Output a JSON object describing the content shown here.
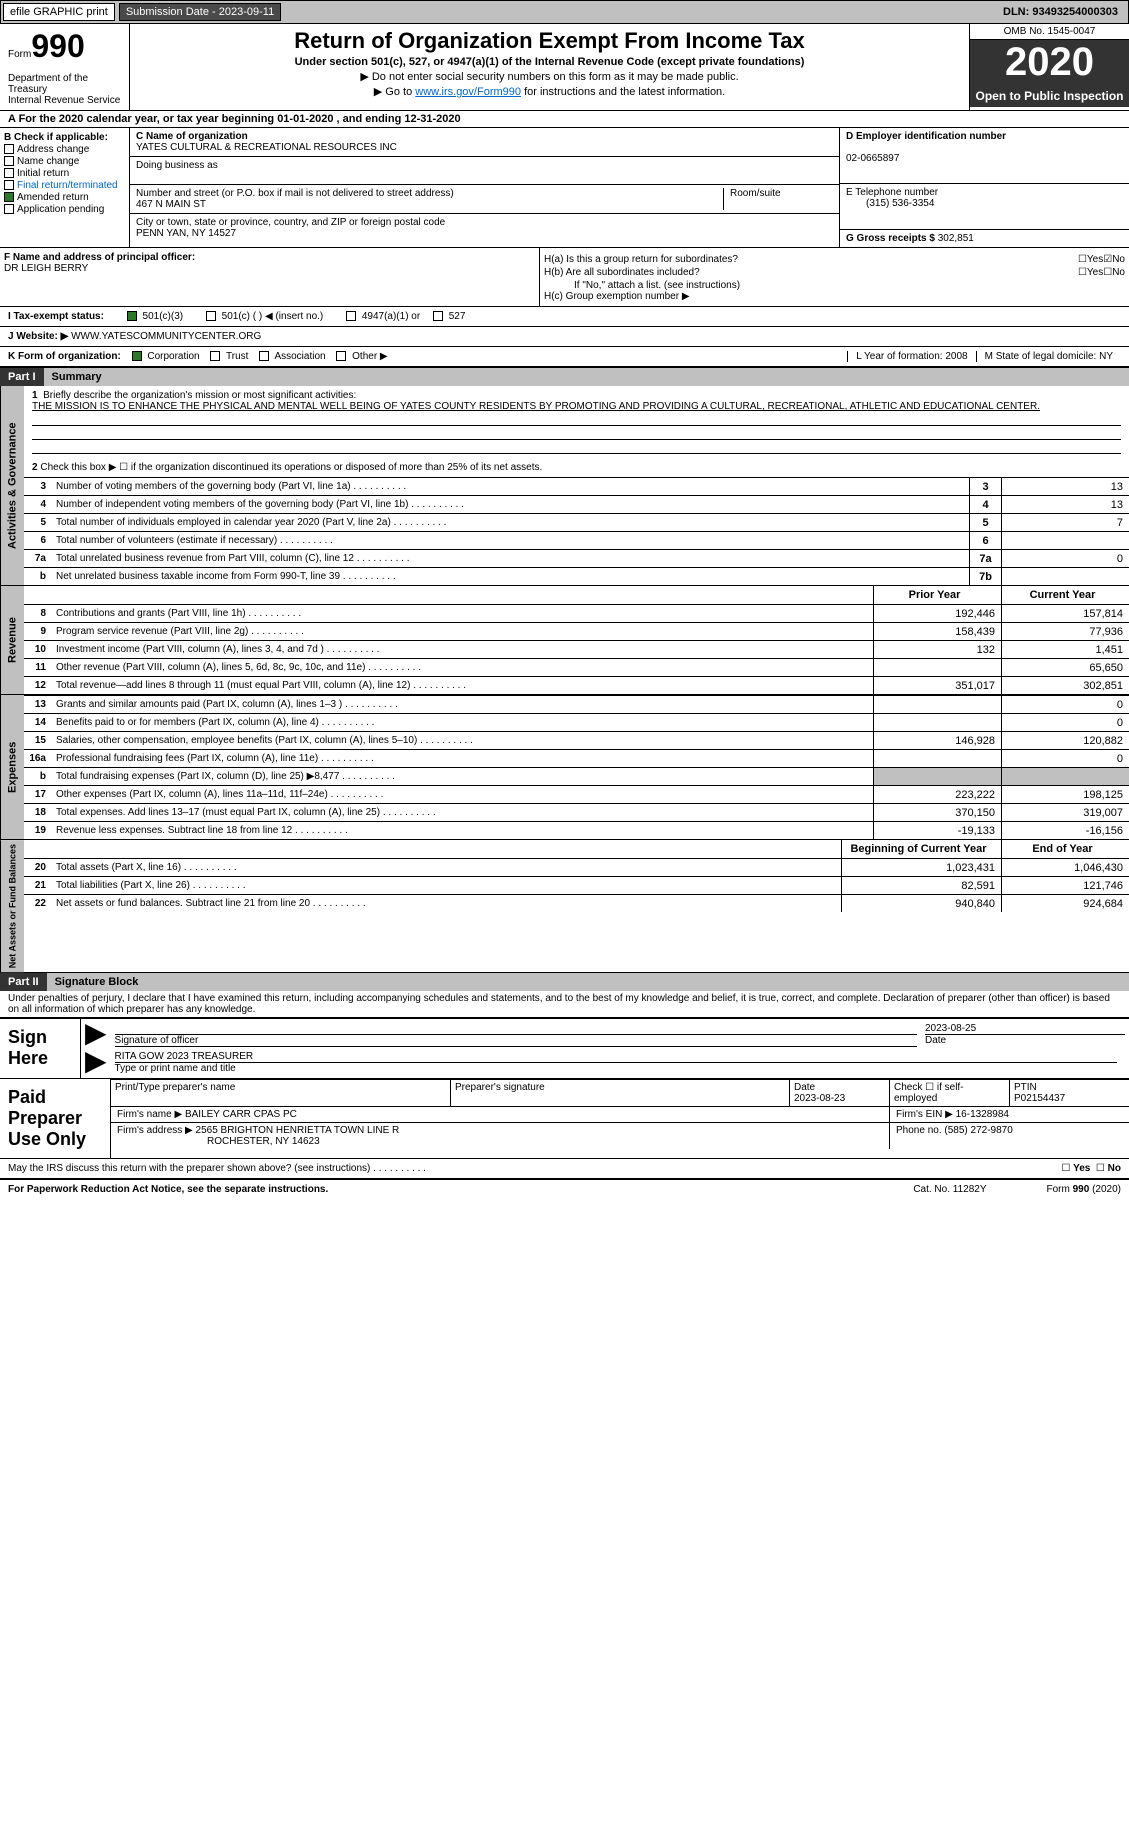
{
  "topbar": {
    "efile": "efile GRAPHIC print",
    "sub_label": "Submission Date - 2023-09-11",
    "dln": "DLN: 93493254000303"
  },
  "header": {
    "form_label": "Form",
    "form_num": "990",
    "dept": "Department of the Treasury\nInternal Revenue Service",
    "title": "Return of Organization Exempt From Income Tax",
    "subtitle": "Under section 501(c), 527, or 4947(a)(1) of the Internal Revenue Code (except private foundations)",
    "line1": "▶ Do not enter social security numbers on this form as it may be made public.",
    "line2_pre": "▶ Go to ",
    "line2_link": "www.irs.gov/Form990",
    "line2_post": " for instructions and the latest information.",
    "omb": "OMB No. 1545-0047",
    "year": "2020",
    "inspect": "Open to Public Inspection"
  },
  "line_a": "A For the 2020 calendar year, or tax year beginning 01-01-2020   , and ending 12-31-2020",
  "box_b": {
    "title": "B Check if applicable:",
    "items": [
      "Address change",
      "Name change",
      "Initial return",
      "Final return/terminated",
      "Amended return",
      "Application pending"
    ],
    "checked": [
      false,
      false,
      false,
      false,
      true,
      false
    ]
  },
  "box_c": {
    "name_label": "C Name of organization",
    "name": "YATES CULTURAL & RECREATIONAL RESOURCES INC",
    "dba_label": "Doing business as",
    "addr_label": "Number and street (or P.O. box if mail is not delivered to street address)",
    "addr": "467 N MAIN ST",
    "room_label": "Room/suite",
    "city_label": "City or town, state or province, country, and ZIP or foreign postal code",
    "city": "PENN YAN, NY  14527"
  },
  "box_d": {
    "ein_label": "D Employer identification number",
    "ein": "02-0665897",
    "tel_label": "E Telephone number",
    "tel": "(315) 536-3354",
    "gross_label": "G Gross receipts $ ",
    "gross": "302,851"
  },
  "box_f": {
    "label": "F  Name and address of principal officer:",
    "name": "DR LEIGH BERRY"
  },
  "box_h": {
    "ha": "H(a)  Is this a group return for subordinates?",
    "hb": "H(b)  Are all subordinates included?",
    "hb_note": "If \"No,\" attach a list. (see instructions)",
    "hc": "H(c)  Group exemption number ▶"
  },
  "tax_status": {
    "label": "I   Tax-exempt status:",
    "opts": [
      "501(c)(3)",
      "501(c) (  ) ◀ (insert no.)",
      "4947(a)(1) or",
      "527"
    ]
  },
  "website": {
    "label": "J   Website: ▶ ",
    "val": "WWW.YATESCOMMUNITYCENTER.ORG"
  },
  "box_k": {
    "label": "K Form of organization:",
    "opts": [
      "Corporation",
      "Trust",
      "Association",
      "Other ▶"
    ]
  },
  "box_l": "L Year of formation: 2008",
  "box_m": "M State of legal domicile: NY",
  "part1": {
    "header": "Part I",
    "title": "Summary",
    "q1_label": "1",
    "q1": "Briefly describe the organization's mission or most significant activities:",
    "mission": "THE MISSION IS TO ENHANCE THE PHYSICAL AND MENTAL WELL BEING OF YATES COUNTY RESIDENTS BY PROMOTING AND PROVIDING A CULTURAL, RECREATIONAL, ATHLETIC AND EDUCATIONAL CENTER.",
    "q2": "Check this box ▶ ☐ if the organization discontinued its operations or disposed of more than 25% of its net assets."
  },
  "sections": {
    "governance": "Activities & Governance",
    "revenue": "Revenue",
    "expenses": "Expenses",
    "net": "Net Assets or Fund Balances"
  },
  "gov_rows": [
    {
      "n": "3",
      "t": "Number of voting members of the governing body (Part VI, line 1a)",
      "box": "3",
      "v": "13"
    },
    {
      "n": "4",
      "t": "Number of independent voting members of the governing body (Part VI, line 1b)",
      "box": "4",
      "v": "13"
    },
    {
      "n": "5",
      "t": "Total number of individuals employed in calendar year 2020 (Part V, line 2a)",
      "box": "5",
      "v": "7"
    },
    {
      "n": "6",
      "t": "Total number of volunteers (estimate if necessary)",
      "box": "6",
      "v": ""
    },
    {
      "n": "7a",
      "t": "Total unrelated business revenue from Part VIII, column (C), line 12",
      "box": "7a",
      "v": "0"
    },
    {
      "n": "b",
      "t": "Net unrelated business taxable income from Form 990-T, line 39",
      "box": "7b",
      "v": ""
    }
  ],
  "col_headers": {
    "prior": "Prior Year",
    "current": "Current Year",
    "boy": "Beginning of Current Year",
    "eoy": "End of Year"
  },
  "rev_rows": [
    {
      "n": "8",
      "t": "Contributions and grants (Part VIII, line 1h)",
      "p": "192,446",
      "c": "157,814"
    },
    {
      "n": "9",
      "t": "Program service revenue (Part VIII, line 2g)",
      "p": "158,439",
      "c": "77,936"
    },
    {
      "n": "10",
      "t": "Investment income (Part VIII, column (A), lines 3, 4, and 7d )",
      "p": "132",
      "c": "1,451"
    },
    {
      "n": "11",
      "t": "Other revenue (Part VIII, column (A), lines 5, 6d, 8c, 9c, 10c, and 11e)",
      "p": "",
      "c": "65,650"
    },
    {
      "n": "12",
      "t": "Total revenue—add lines 8 through 11 (must equal Part VIII, column (A), line 12)",
      "p": "351,017",
      "c": "302,851"
    }
  ],
  "exp_rows": [
    {
      "n": "13",
      "t": "Grants and similar amounts paid (Part IX, column (A), lines 1–3 )",
      "p": "",
      "c": "0"
    },
    {
      "n": "14",
      "t": "Benefits paid to or for members (Part IX, column (A), line 4)",
      "p": "",
      "c": "0"
    },
    {
      "n": "15",
      "t": "Salaries, other compensation, employee benefits (Part IX, column (A), lines 5–10)",
      "p": "146,928",
      "c": "120,882"
    },
    {
      "n": "16a",
      "t": "Professional fundraising fees (Part IX, column (A), line 11e)",
      "p": "",
      "c": "0"
    },
    {
      "n": "b",
      "t": "Total fundraising expenses (Part IX, column (D), line 25) ▶8,477",
      "p": "shaded",
      "c": "shaded"
    },
    {
      "n": "17",
      "t": "Other expenses (Part IX, column (A), lines 11a–11d, 11f–24e)",
      "p": "223,222",
      "c": "198,125"
    },
    {
      "n": "18",
      "t": "Total expenses. Add lines 13–17 (must equal Part IX, column (A), line 25)",
      "p": "370,150",
      "c": "319,007"
    },
    {
      "n": "19",
      "t": "Revenue less expenses. Subtract line 18 from line 12",
      "p": "-19,133",
      "c": "-16,156"
    }
  ],
  "net_rows": [
    {
      "n": "20",
      "t": "Total assets (Part X, line 16)",
      "p": "1,023,431",
      "c": "1,046,430"
    },
    {
      "n": "21",
      "t": "Total liabilities (Part X, line 26)",
      "p": "82,591",
      "c": "121,746"
    },
    {
      "n": "22",
      "t": "Net assets or fund balances. Subtract line 21 from line 20",
      "p": "940,840",
      "c": "924,684"
    }
  ],
  "part2": {
    "header": "Part II",
    "title": "Signature Block",
    "penalty": "Under penalties of perjury, I declare that I have examined this return, including accompanying schedules and statements, and to the best of my knowledge and belief, it is true, correct, and complete. Declaration of preparer (other than officer) is based on all information of which preparer has any knowledge."
  },
  "sign": {
    "label": "Sign Here",
    "sig_label": "Signature of officer",
    "date": "2023-08-25",
    "date_label": "Date",
    "name": "RITA GOW 2023 TREASURER",
    "name_label": "Type or print name and title"
  },
  "prep": {
    "label": "Paid Preparer Use Only",
    "h1": "Print/Type preparer's name",
    "h2": "Preparer's signature",
    "h3": "Date",
    "h3v": "2023-08-23",
    "h4": "Check ☐ if self-employed",
    "h5": "PTIN",
    "h5v": "P02154437",
    "firm_label": "Firm's name    ▶",
    "firm": "BAILEY CARR CPAS PC",
    "ein_label": "Firm's EIN ▶",
    "ein": "16-1328984",
    "addr_label": "Firm's address ▶",
    "addr1": "2565 BRIGHTON HENRIETTA TOWN LINE R",
    "addr2": "ROCHESTER, NY  14623",
    "phone_label": "Phone no.",
    "phone": "(585) 272-9870"
  },
  "discuss": "May the IRS discuss this return with the preparer shown above? (see instructions)",
  "footer": {
    "left": "For Paperwork Reduction Act Notice, see the separate instructions.",
    "mid": "Cat. No. 11282Y",
    "right": "Form 990 (2020)"
  }
}
